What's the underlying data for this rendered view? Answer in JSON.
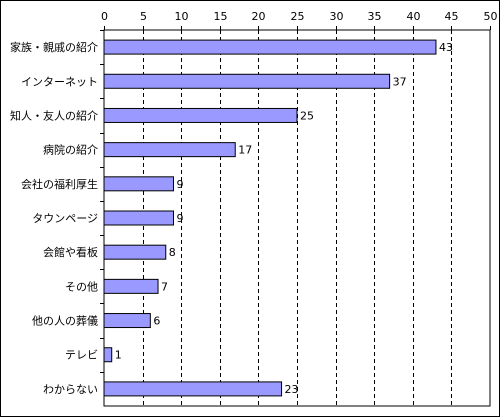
{
  "chart_data": {
    "type": "bar",
    "orientation": "horizontal",
    "categories": [
      "家族・親戚の紹介",
      "インターネット",
      "知人・友人の紹介",
      "病院の紹介",
      "会社の福利厚生",
      "タウンページ",
      "会館や看板",
      "その他",
      "他の人の葬儀",
      "テレビ",
      "わからない"
    ],
    "values": [
      43,
      37,
      25,
      17,
      9,
      9,
      8,
      7,
      6,
      1,
      23
    ],
    "xlim": [
      0,
      50
    ],
    "xticks": [
      0,
      5,
      10,
      15,
      20,
      25,
      30,
      35,
      40,
      45,
      50
    ],
    "xtick_labels": [
      "0",
      "5",
      "10",
      "15",
      "20",
      "25",
      "30",
      "35",
      "40",
      "45",
      "50"
    ],
    "axis_position": "top",
    "grid": "vertical dashed",
    "bar_color": "#9999ff",
    "bar_edge_color": "#000000",
    "title": "",
    "xlabel": "",
    "ylabel": ""
  }
}
